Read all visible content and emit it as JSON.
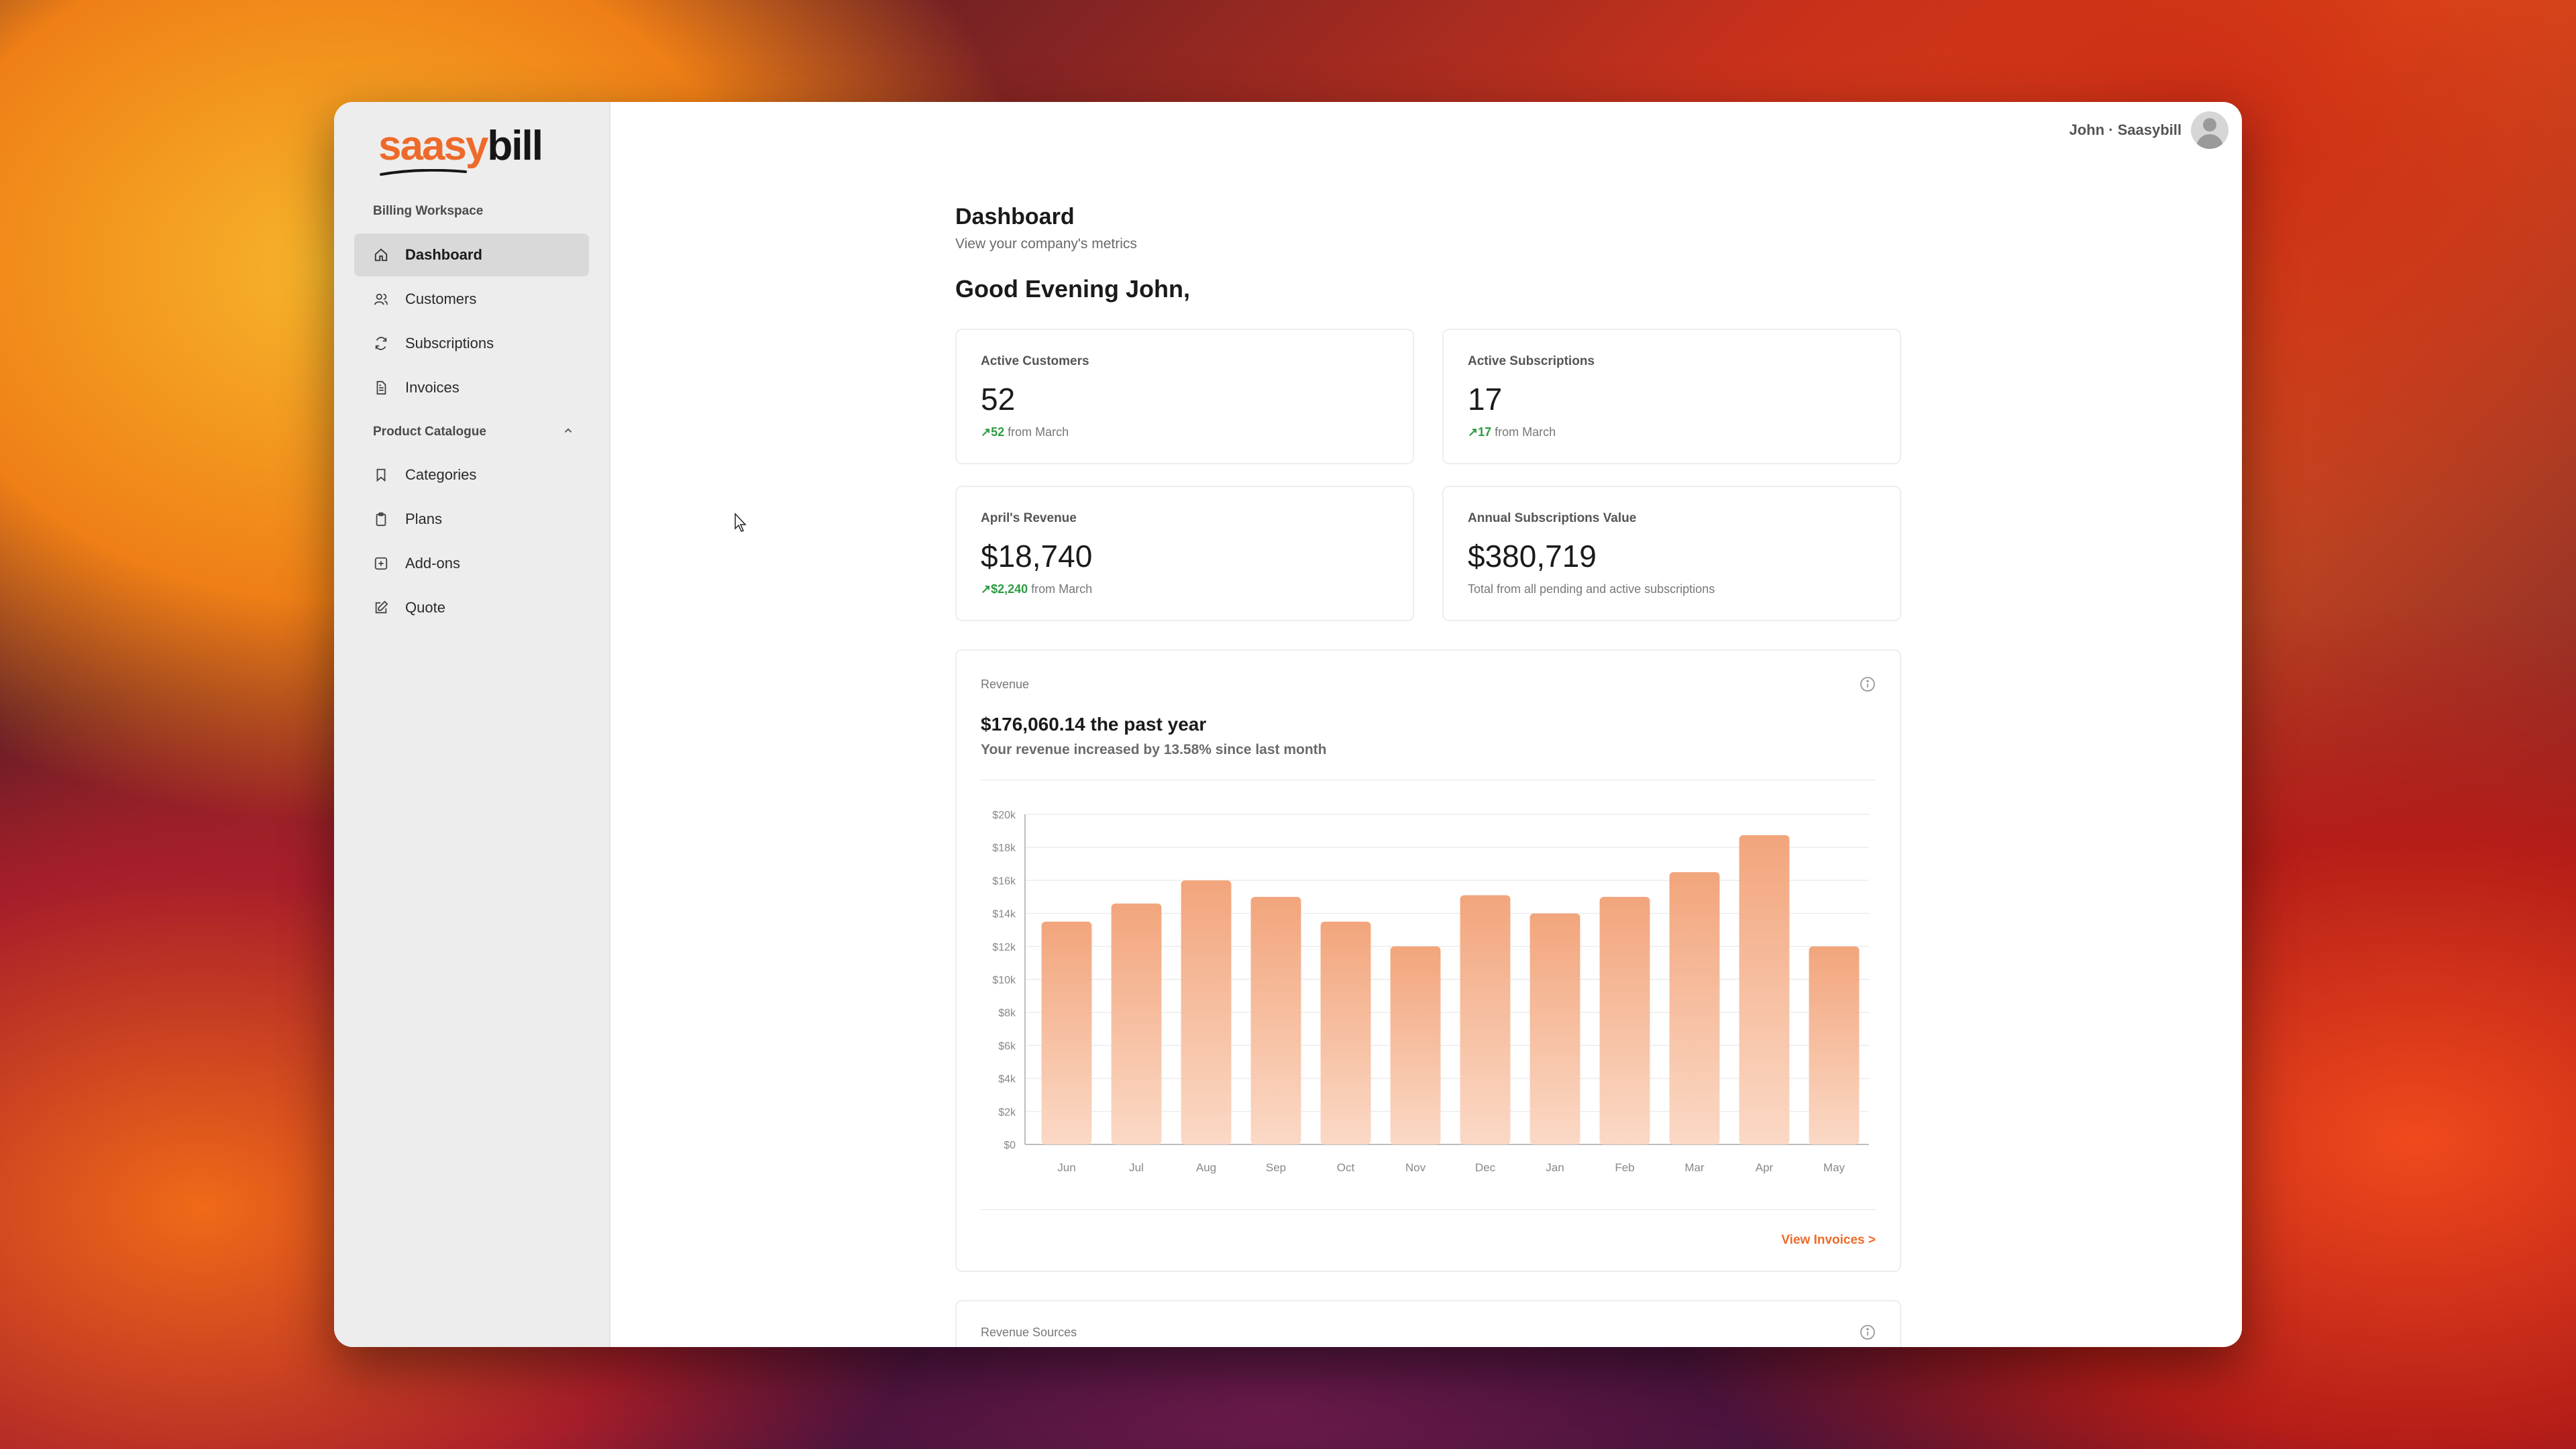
{
  "app": {
    "logo_part1": "saasy",
    "logo_part2": "bill"
  },
  "sidebar": {
    "workspace_label": "Billing Workspace",
    "items": [
      {
        "label": "Dashboard",
        "icon": "home-icon",
        "active": true
      },
      {
        "label": "Customers",
        "icon": "users-icon"
      },
      {
        "label": "Subscriptions",
        "icon": "refresh-icon"
      },
      {
        "label": "Invoices",
        "icon": "document-icon"
      }
    ],
    "section_label": "Product Catalogue",
    "section_items": [
      {
        "label": "Categories",
        "icon": "bookmark-icon"
      },
      {
        "label": "Plans",
        "icon": "clipboard-icon"
      },
      {
        "label": "Add-ons",
        "icon": "plus-square-icon"
      },
      {
        "label": "Quote",
        "icon": "edit-icon"
      }
    ]
  },
  "topbar": {
    "user": "John · Saasybill"
  },
  "page": {
    "title": "Dashboard",
    "subtitle": "View your company's metrics",
    "greeting": "Good Evening John,"
  },
  "metrics": [
    {
      "label": "Active Customers",
      "value": "52",
      "delta": "52",
      "delta_suffix": " from March"
    },
    {
      "label": "Active Subscriptions",
      "value": "17",
      "delta": "17",
      "delta_suffix": " from March"
    },
    {
      "label": "April's Revenue",
      "value": "$18,740",
      "delta": "$2,240",
      "delta_suffix": " from March"
    },
    {
      "label": "Annual Subscriptions Value",
      "value": "$380,719",
      "note": "Total from all pending and active subscriptions"
    }
  ],
  "revenue_card": {
    "label": "Revenue",
    "title": "$176,060.14 the past year",
    "subtitle": "Your revenue increased by 13.58% since last month",
    "link": "View Invoices >"
  },
  "revenue_sources": {
    "label": "Revenue Sources"
  },
  "colors": {
    "accent": "#ee6a2a",
    "positive": "#2e9a43",
    "bar_top": "#f2a57c",
    "bar_bottom": "#fbd9c6"
  },
  "chart_data": {
    "type": "bar",
    "categories": [
      "Jun",
      "Jul",
      "Aug",
      "Sep",
      "Oct",
      "Nov",
      "Dec",
      "Jan",
      "Feb",
      "Mar",
      "Apr",
      "May"
    ],
    "values": [
      13500,
      14600,
      16000,
      15000,
      13500,
      12000,
      15100,
      14000,
      15000,
      16500,
      18740,
      12000
    ],
    "yticks": [
      "$0",
      "$2k",
      "$4k",
      "$6k",
      "$8k",
      "$10k",
      "$12k",
      "$14k",
      "$16k",
      "$18k",
      "$20k"
    ],
    "ylim": [
      0,
      20000
    ],
    "grid": true
  }
}
